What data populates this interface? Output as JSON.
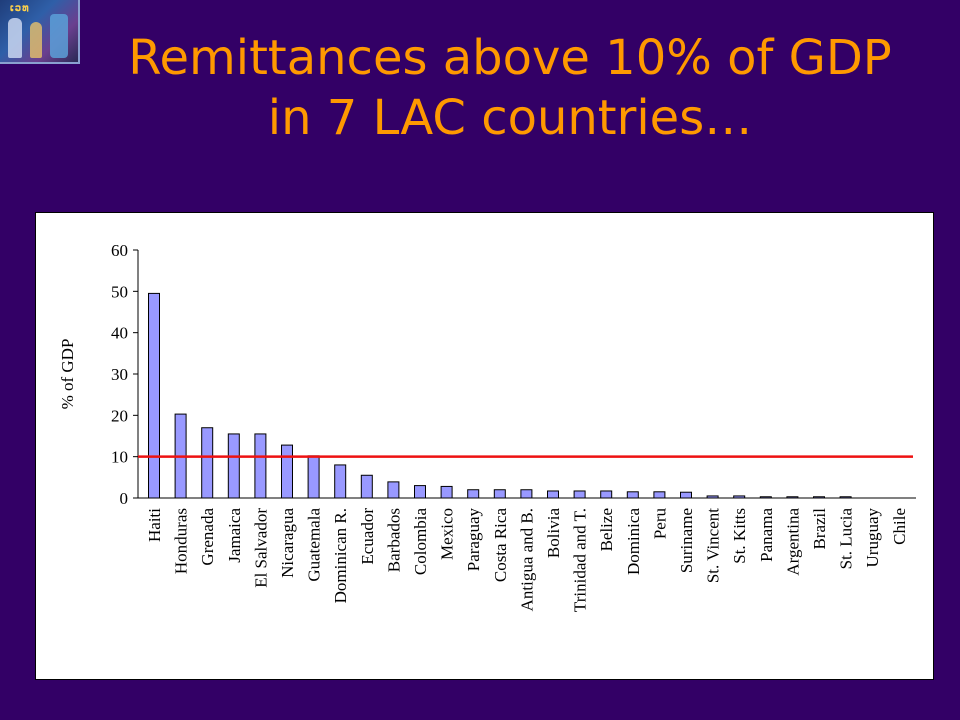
{
  "slide": {
    "title_line1": "Remittances above 10% of GDP",
    "title_line2": "in 7 LAC countries…"
  },
  "logo": {
    "caption": "ເວທ"
  },
  "chart_data": {
    "type": "bar",
    "ylabel": "% of GDP",
    "xlabel": "",
    "ylim": [
      0,
      60
    ],
    "yticks": [
      0,
      10,
      20,
      30,
      40,
      50,
      60
    ],
    "threshold": 10,
    "bar_color": "#9999ff",
    "threshold_color": "#ee1111",
    "categories": [
      "Haiti",
      "Honduras",
      "Grenada",
      "Jamaica",
      "El Salvador",
      "Nicaragua",
      "Guatemala",
      "Dominican R.",
      "Ecuador",
      "Barbados",
      "Colombia",
      "Mexico",
      "Paraguay",
      "Costa Rica",
      "Antigua and B.",
      "Bolivia",
      "Trinidad and T.",
      "Belize",
      "Dominica",
      "Peru",
      "Suriname",
      "St. Vincent",
      "St. Kitts",
      "Panama",
      "Argentina",
      "Brazil",
      "St. Lucia",
      "Uruguay",
      "Chile"
    ],
    "values": [
      49.5,
      20.3,
      17.0,
      15.5,
      15.5,
      12.8,
      10.2,
      8.0,
      5.5,
      3.9,
      3.0,
      2.8,
      2.0,
      2.0,
      2.0,
      1.7,
      1.7,
      1.7,
      1.5,
      1.5,
      1.4,
      0.5,
      0.5,
      0.3,
      0.3,
      0.3,
      0.3,
      0.0,
      0.0
    ],
    "grid": false,
    "legend": "none"
  }
}
